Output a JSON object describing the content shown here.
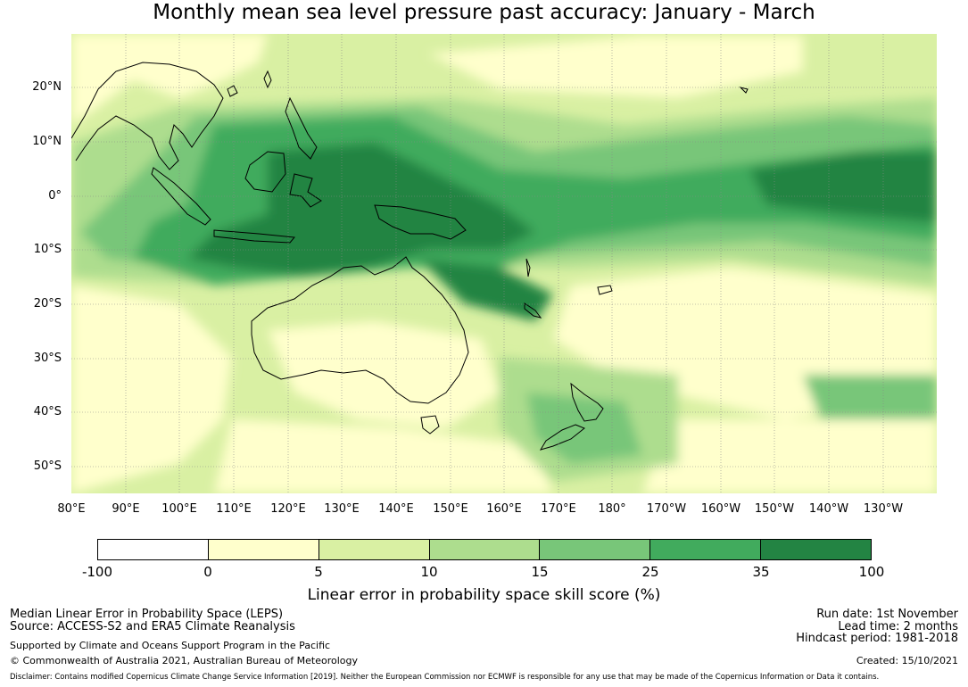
{
  "title": "Monthly mean sea level pressure past accuracy: January - March",
  "map": {
    "lat_labels": [
      "20°N",
      "10°N",
      "0°",
      "10°S",
      "20°S",
      "30°S",
      "40°S",
      "50°S"
    ],
    "lon_labels": [
      "80°E",
      "90°E",
      "100°E",
      "110°E",
      "120°E",
      "130°E",
      "140°E",
      "150°E",
      "160°E",
      "170°E",
      "180°",
      "170°W",
      "160°W",
      "150°W",
      "140°W",
      "130°W"
    ],
    "extent": {
      "lon_min": 80,
      "lon_max": 240,
      "lat_min": -55,
      "lat_max": 30
    }
  },
  "colorbar": {
    "ticks": [
      "-100",
      "0",
      "5",
      "10",
      "15",
      "25",
      "35",
      "100"
    ],
    "colors": [
      "#ffffff",
      "#ffffcc",
      "#d9f0a3",
      "#addd8e",
      "#78c679",
      "#41ab5d",
      "#238443"
    ],
    "label": "Linear error in probability space skill score (%)"
  },
  "info": {
    "left": {
      "line1": "Median Linear Error in Probability Space (LEPS)",
      "line2": "Source: ACCESS-S2 and ERA5 Climate Reanalysis",
      "line3": "Supported by Climate and Oceans Support Program in the Pacific",
      "line4": "© Commonwealth of Australia 2021, Australian Bureau of Meteorology"
    },
    "right": {
      "run_date": "Run date: 1st November",
      "lead_time": "Lead time: 2 months",
      "hindcast": "Hindcast period: 1981-2018",
      "created": "Created: 15/10/2021"
    },
    "disclaimer": "Disclaimer: Contains modified Copernicus Climate Change Service Information [2019]. Neither the European Commission nor ECMWF is responsible for any use that may be made of the Copernicus Information or Data it contains."
  }
}
